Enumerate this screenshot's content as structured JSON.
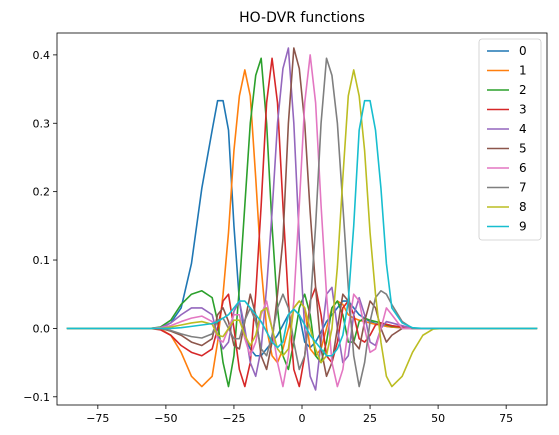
{
  "chart_data": {
    "type": "line",
    "title": "HO-DVR functions",
    "xlabel": "",
    "ylabel": "",
    "xlim": [
      -90,
      90
    ],
    "ylim": [
      -0.112,
      0.432
    ],
    "xticks": [
      -75,
      -50,
      -25,
      0,
      25,
      50,
      75
    ],
    "xtick_labels": [
      "−75",
      "−50",
      "−25",
      "0",
      "25",
      "50",
      "75"
    ],
    "yticks": [
      -0.1,
      0.0,
      0.1,
      0.2,
      0.3,
      0.4
    ],
    "ytick_labels": [
      "−0.1",
      "0.0",
      "0.1",
      "0.2",
      "0.3",
      "0.4"
    ],
    "grid": false,
    "legend_position": "top-right",
    "x": [
      -86.2,
      -82.4,
      -78.6,
      -74.8,
      -71.0,
      -67.2,
      -63.4,
      -59.6,
      -55.8,
      -52.0,
      -48.2,
      -44.4,
      -40.6,
      -36.8,
      -33.0,
      -31.0,
      -29.0,
      -27.0,
      -25.0,
      -23.0,
      -21.0,
      -19.0,
      -17.0,
      -15.0,
      -13.0,
      -11.0,
      -9.0,
      -7.0,
      -5.0,
      -3.0,
      -1.0,
      1.0,
      3.0,
      5.0,
      7.0,
      9.0,
      11.0,
      13.0,
      15.0,
      17.0,
      19.0,
      21.0,
      23.0,
      25.0,
      27.0,
      29.0,
      31.0,
      33.0,
      36.8,
      40.6,
      44.4,
      48.2,
      52.0,
      55.8,
      59.6,
      63.4,
      67.2,
      71.0,
      74.8,
      78.6,
      82.4,
      86.2
    ],
    "series": [
      {
        "name": "0",
        "color": "#1f77b4",
        "values": [
          0,
          0,
          0,
          0,
          0,
          0,
          0,
          0,
          0,
          0.001,
          0.008,
          0.03,
          0.095,
          0.205,
          0.29,
          0.333,
          0.333,
          0.29,
          0.15,
          0.04,
          -0.01,
          -0.03,
          -0.04,
          -0.04,
          -0.03,
          -0.02,
          -0.01,
          0.005,
          0.02,
          0.028,
          0.02,
          -0.02,
          -0.028,
          -0.02,
          -0.005,
          0.01,
          0.02,
          0.03,
          0.04,
          0.04,
          0.03,
          0.02,
          0.015,
          0.01,
          0.007,
          0.005,
          0.003,
          0.002,
          0.001,
          0,
          0,
          0,
          0,
          0,
          0,
          0,
          0,
          0,
          0,
          0,
          0,
          0
        ]
      },
      {
        "name": "1",
        "color": "#ff7f0e",
        "values": [
          0,
          0,
          0,
          0,
          0,
          0,
          0,
          0,
          0,
          -0.001,
          -0.01,
          -0.035,
          -0.07,
          -0.085,
          -0.07,
          -0.02,
          0.05,
          0.14,
          0.26,
          0.34,
          0.378,
          0.34,
          0.22,
          0.09,
          0.0,
          -0.04,
          -0.05,
          -0.03,
          0.0,
          0.03,
          0.04,
          0.03,
          -0.03,
          -0.04,
          -0.03,
          0.0,
          0.03,
          0.04,
          0.035,
          0.02,
          0.015,
          0.012,
          0.01,
          0.008,
          0.006,
          0.005,
          0.003,
          0.002,
          0.001,
          0,
          0,
          0,
          0,
          0,
          0,
          0,
          0,
          0,
          0,
          0,
          0,
          0
        ]
      },
      {
        "name": "2",
        "color": "#2ca02c",
        "values": [
          0,
          0,
          0,
          0,
          0,
          0,
          0,
          0,
          0,
          0.002,
          0.012,
          0.035,
          0.05,
          0.055,
          0.045,
          0.01,
          -0.05,
          -0.085,
          -0.04,
          0.06,
          0.18,
          0.3,
          0.37,
          0.395,
          0.3,
          0.15,
          0.03,
          -0.04,
          -0.06,
          -0.02,
          0.03,
          0.05,
          0.02,
          -0.04,
          -0.05,
          -0.02,
          0.03,
          0.04,
          0.02,
          -0.02,
          -0.02,
          0.01,
          0.015,
          0.012,
          0.01,
          0.008,
          0.005,
          0.003,
          0.002,
          0,
          0,
          0,
          0,
          0,
          0,
          0,
          0,
          0,
          0,
          0,
          0,
          0
        ]
      },
      {
        "name": "3",
        "color": "#d62728",
        "values": [
          0,
          0,
          0,
          0,
          0,
          0,
          0,
          0,
          0,
          -0.002,
          -0.01,
          -0.025,
          -0.035,
          -0.04,
          -0.03,
          0.0,
          0.04,
          0.05,
          0.0,
          -0.06,
          -0.085,
          -0.05,
          0.05,
          0.18,
          0.33,
          0.395,
          0.33,
          0.18,
          0.04,
          -0.06,
          -0.085,
          -0.04,
          0.04,
          0.06,
          0.02,
          -0.04,
          -0.05,
          -0.02,
          0.03,
          0.04,
          0.02,
          -0.015,
          -0.02,
          -0.01,
          0.005,
          0.008,
          0.006,
          0.004,
          0.002,
          0,
          0,
          0,
          0,
          0,
          0,
          0,
          0,
          0,
          0,
          0,
          0,
          0
        ]
      },
      {
        "name": "4",
        "color": "#9467bd",
        "values": [
          0,
          0,
          0,
          0,
          0,
          0,
          0,
          0,
          0,
          0.001,
          0.008,
          0.02,
          0.03,
          0.03,
          0.02,
          -0.01,
          -0.03,
          -0.02,
          0.025,
          0.04,
          0.0,
          -0.05,
          -0.07,
          -0.03,
          0.06,
          0.17,
          0.3,
          0.38,
          0.41,
          0.3,
          0.13,
          0.0,
          -0.07,
          -0.09,
          -0.02,
          0.05,
          0.06,
          0.0,
          -0.05,
          -0.04,
          0.02,
          0.045,
          0.02,
          -0.02,
          -0.025,
          0.0,
          0.01,
          0.008,
          0.004,
          0,
          0,
          0,
          0,
          0,
          0,
          0,
          0,
          0,
          0,
          0,
          0,
          0
        ]
      },
      {
        "name": "5",
        "color": "#8c564b",
        "values": [
          0,
          0,
          0,
          0,
          0,
          0,
          0,
          0,
          0,
          0,
          -0.004,
          -0.01,
          -0.02,
          -0.025,
          -0.015,
          0.02,
          0.03,
          0.01,
          -0.025,
          -0.03,
          0.01,
          0.05,
          0.02,
          -0.04,
          -0.06,
          -0.02,
          0.05,
          0.13,
          0.3,
          0.41,
          0.38,
          0.3,
          0.17,
          0.06,
          -0.03,
          -0.07,
          -0.05,
          0.0,
          0.05,
          0.04,
          -0.02,
          -0.03,
          0.01,
          0.04,
          0.03,
          0.0,
          -0.02,
          -0.01,
          0.0,
          0,
          0,
          0,
          0,
          0,
          0,
          0,
          0,
          0,
          0,
          0,
          0,
          0
        ]
      },
      {
        "name": "6",
        "color": "#e377c2",
        "values": [
          0,
          0,
          0,
          0,
          0,
          0,
          0,
          0,
          0,
          0.001,
          0.004,
          0.01,
          0.015,
          0.018,
          0.01,
          -0.015,
          -0.02,
          0.0,
          0.02,
          0.02,
          -0.015,
          -0.04,
          -0.02,
          0.02,
          0.04,
          0.0,
          -0.05,
          -0.085,
          -0.04,
          0.04,
          0.18,
          0.33,
          0.4,
          0.33,
          0.18,
          0.05,
          -0.05,
          -0.085,
          -0.06,
          0.0,
          0.05,
          0.04,
          0.0,
          -0.035,
          -0.03,
          0.0,
          0.03,
          0.02,
          0.0,
          0,
          0,
          0,
          0,
          0,
          0,
          0,
          0,
          0,
          0,
          0,
          0,
          0
        ]
      },
      {
        "name": "7",
        "color": "#7f7f7f",
        "values": [
          0,
          0,
          0,
          0,
          0,
          0,
          0,
          0,
          0,
          0,
          -0.003,
          -0.008,
          -0.012,
          -0.014,
          -0.008,
          0.012,
          0.015,
          0.0,
          -0.015,
          -0.015,
          0.012,
          0.03,
          0.01,
          -0.03,
          -0.04,
          -0.01,
          0.03,
          0.05,
          0.03,
          -0.02,
          -0.06,
          -0.04,
          0.03,
          0.15,
          0.3,
          0.395,
          0.37,
          0.3,
          0.18,
          0.06,
          -0.04,
          -0.085,
          -0.05,
          0.01,
          0.045,
          0.055,
          0.05,
          0.035,
          0.01,
          0,
          0,
          0,
          0,
          0,
          0,
          0,
          0,
          0,
          0,
          0,
          0,
          0
        ]
      },
      {
        "name": "8",
        "color": "#bcbd22",
        "values": [
          0,
          0,
          0,
          0,
          0,
          0,
          0,
          0,
          0,
          0,
          0.002,
          0.005,
          0.008,
          0.01,
          0.006,
          -0.01,
          -0.012,
          0.0,
          0.012,
          0.012,
          -0.01,
          -0.025,
          -0.01,
          0.025,
          0.03,
          0.0,
          -0.03,
          -0.04,
          -0.03,
          0.03,
          0.04,
          0.03,
          0.0,
          -0.03,
          -0.05,
          -0.04,
          0.0,
          0.09,
          0.22,
          0.34,
          0.378,
          0.34,
          0.26,
          0.14,
          0.05,
          -0.02,
          -0.07,
          -0.085,
          -0.07,
          -0.035,
          -0.01,
          -0.001,
          0,
          0,
          0,
          0,
          0,
          0,
          0,
          0,
          0,
          0
        ]
      },
      {
        "name": "9",
        "color": "#17becf",
        "values": [
          0,
          0,
          0,
          0,
          0,
          0,
          0,
          0,
          0,
          0,
          0,
          0.001,
          0.003,
          0.005,
          0.007,
          0.01,
          0.015,
          0.02,
          0.03,
          0.04,
          0.04,
          0.03,
          0.02,
          0.01,
          -0.005,
          -0.02,
          -0.028,
          -0.02,
          0.02,
          0.028,
          0.02,
          0.005,
          -0.01,
          -0.02,
          -0.03,
          -0.04,
          -0.04,
          -0.03,
          -0.01,
          0.04,
          0.15,
          0.29,
          0.333,
          0.333,
          0.29,
          0.205,
          0.095,
          0.03,
          0.008,
          0.001,
          0,
          0,
          0,
          0,
          0,
          0,
          0,
          0,
          0,
          0,
          0,
          0
        ]
      }
    ]
  }
}
